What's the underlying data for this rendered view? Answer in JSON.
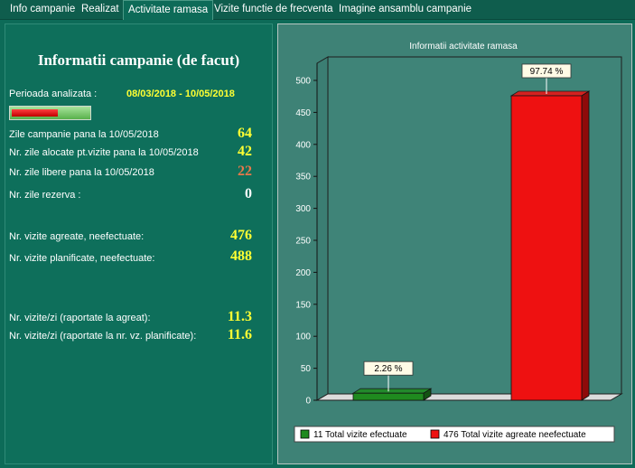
{
  "tabs": [
    {
      "label": "Info campanie",
      "active": false
    },
    {
      "label": "Realizat",
      "active": false
    },
    {
      "label": "Activitate ramasa",
      "active": true
    },
    {
      "label": "Vizite functie de frecventa",
      "active": false
    },
    {
      "label": "Imagine ansamblu campanie",
      "active": false
    }
  ],
  "info": {
    "title": "Informatii campanie (de facut)",
    "period_label": "Perioada analizata :",
    "period_value": "08/03/2018 - 10/05/2018",
    "progress_fraction": 0.6,
    "rows": [
      {
        "label": "Zile campanie pana la 10/05/2018",
        "value": "64",
        "color": "#ffff33"
      },
      {
        "label": "Nr. zile alocate pt.vizite pana la 10/05/2018",
        "value": "42",
        "color": "#ffff33"
      },
      {
        "label": "Nr. zile libere pana la 10/05/2018",
        "value": "22",
        "color": "#e9784a"
      },
      {
        "label": "Nr. zile rezerva :",
        "value": "0",
        "color": "#ffffff"
      },
      {
        "label": "Nr. vizite agreate, neefectuate:",
        "value": "476",
        "color": "#ffff33"
      },
      {
        "label": "Nr. vizite planificate, neefectuate:",
        "value": "488",
        "color": "#ffff33"
      },
      {
        "label": "Nr. vizite/zi (raportate la agreat):",
        "value": "11.3",
        "color": "#ffff33"
      },
      {
        "label": "Nr. vizite/zi (raportate la nr. vz. planificate):",
        "value": "11.6",
        "color": "#ffff33"
      }
    ]
  },
  "chart_data": {
    "type": "bar",
    "title": "Informatii activitate ramasa",
    "ylim": [
      0,
      500
    ],
    "yticks": [
      0,
      50,
      100,
      150,
      200,
      250,
      300,
      350,
      400,
      450,
      500
    ],
    "grid": false,
    "legend_position": "bottom",
    "series": [
      {
        "name": "11 Total vizite efectuate",
        "value": 11,
        "label": "2.26 %",
        "color": "#1f8a1f"
      },
      {
        "name": "476 Total vizite  agreate neefectuate",
        "value": 476,
        "label": "97.74 %",
        "color": "#ee1111"
      }
    ]
  }
}
